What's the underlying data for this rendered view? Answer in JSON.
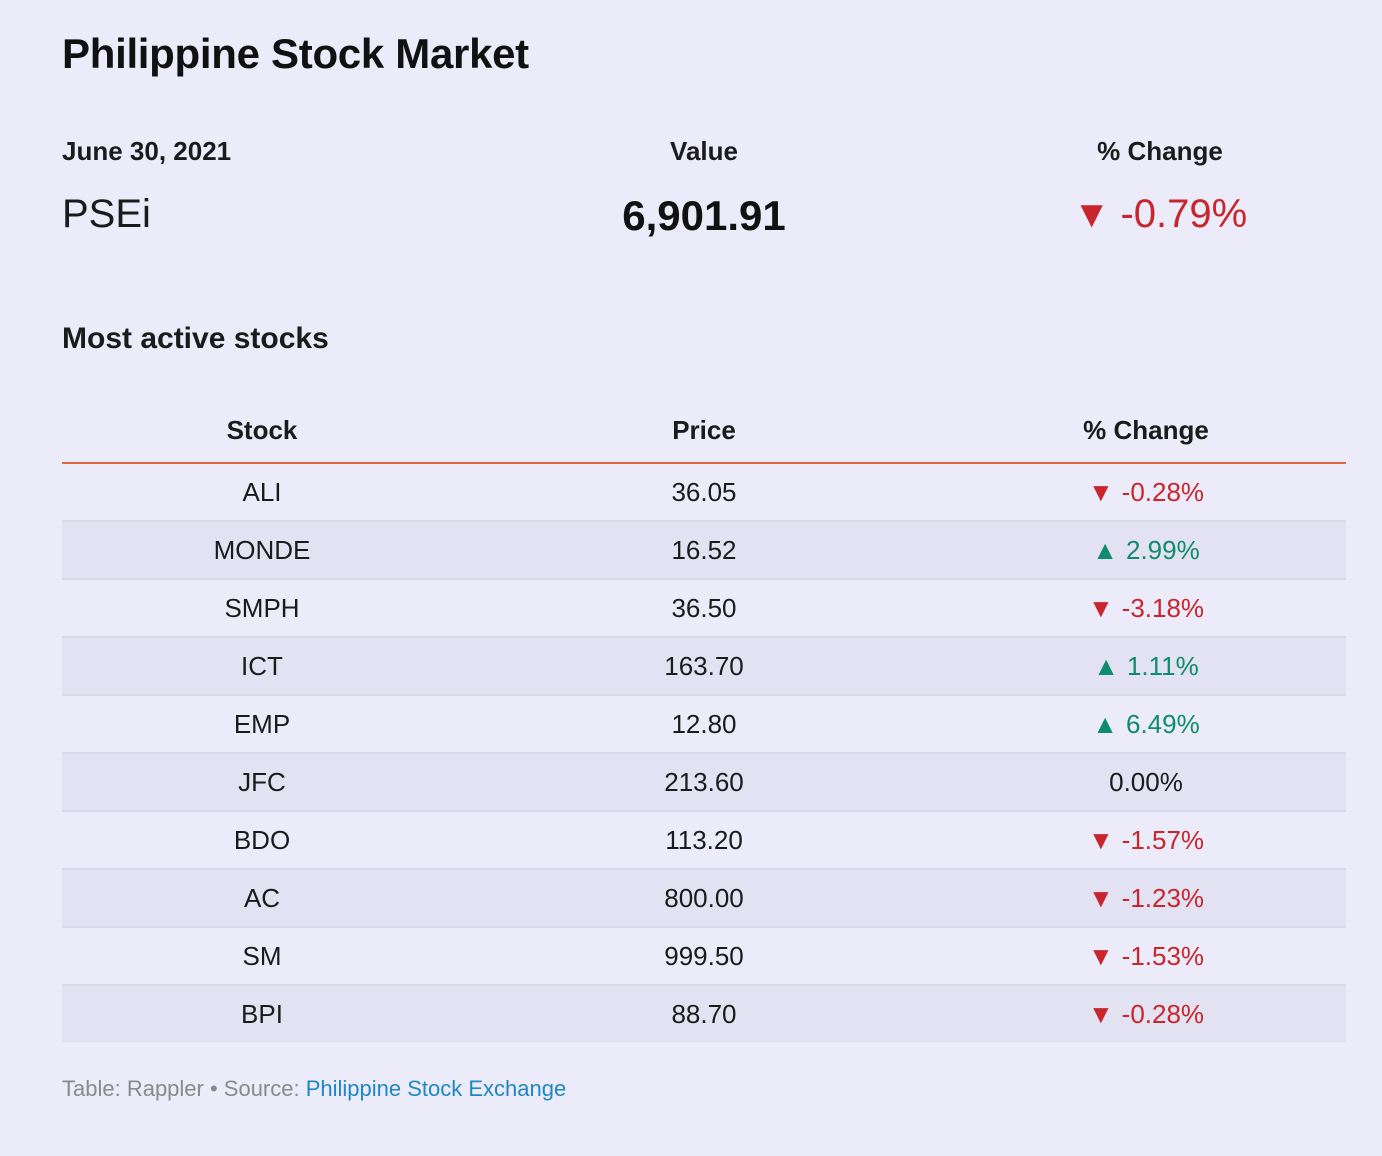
{
  "title": "Philippine Stock Market",
  "summary": {
    "date": "June 30, 2021",
    "value_header": "Value",
    "change_header": "% Change",
    "index_name": "PSEi",
    "index_value": "6,901.91",
    "index_change": "-0.79%",
    "index_direction": "down"
  },
  "section_title": "Most active stocks",
  "table": {
    "headers": [
      "Stock",
      "Price",
      "% Change"
    ],
    "rows": [
      {
        "stock": "ALI",
        "price": "36.05",
        "change": "-0.28%",
        "direction": "down"
      },
      {
        "stock": "MONDE",
        "price": "16.52",
        "change": "2.99%",
        "direction": "up"
      },
      {
        "stock": "SMPH",
        "price": "36.50",
        "change": "-3.18%",
        "direction": "down"
      },
      {
        "stock": "ICT",
        "price": "163.70",
        "change": "1.11%",
        "direction": "up"
      },
      {
        "stock": "EMP",
        "price": "12.80",
        "change": "6.49%",
        "direction": "up"
      },
      {
        "stock": "JFC",
        "price": "213.60",
        "change": "0.00%",
        "direction": "flat"
      },
      {
        "stock": "BDO",
        "price": "113.20",
        "change": "-1.57%",
        "direction": "down"
      },
      {
        "stock": "AC",
        "price": "800.00",
        "change": "-1.23%",
        "direction": "down"
      },
      {
        "stock": "SM",
        "price": "999.50",
        "change": "-1.53%",
        "direction": "down"
      },
      {
        "stock": "BPI",
        "price": "88.70",
        "change": "-0.28%",
        "direction": "down"
      }
    ]
  },
  "footer": {
    "prefix": "Table: Rappler • Source: ",
    "link_text": "Philippine Stock Exchange"
  },
  "colors": {
    "background": "#ebebfa",
    "negative": "#c9252c",
    "positive": "#0e8c6c",
    "header_rule": "#e0633f",
    "link": "#1f87c4"
  },
  "icons": {
    "down": "triangle-down-icon",
    "up": "triangle-up-icon"
  }
}
